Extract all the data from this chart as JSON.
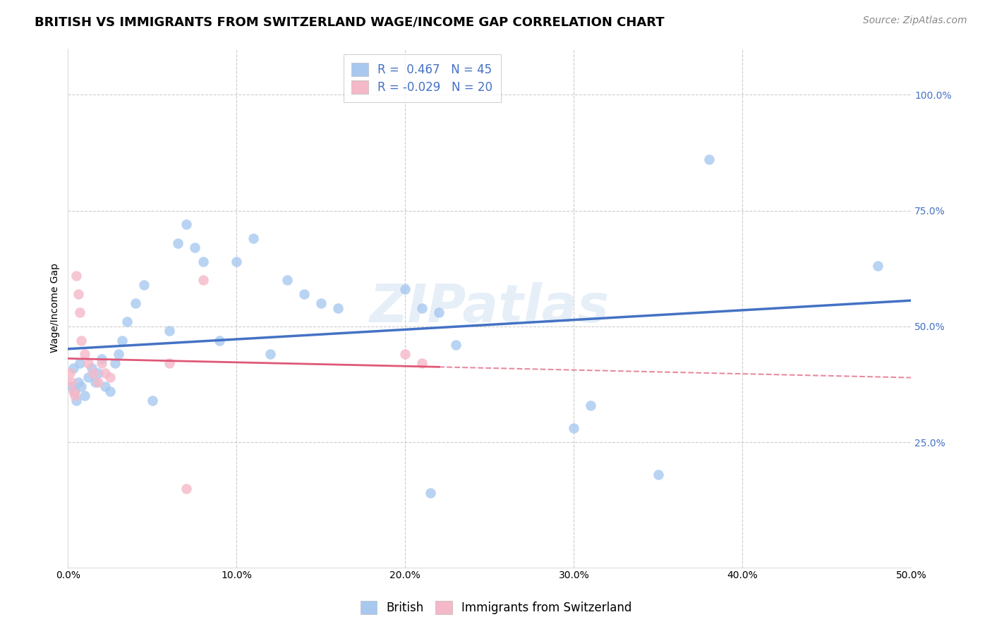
{
  "title": "BRITISH VS IMMIGRANTS FROM SWITZERLAND WAGE/INCOME GAP CORRELATION CHART",
  "source": "Source: ZipAtlas.com",
  "ylabel": "Wage/Income Gap",
  "watermark": "ZIPatlas",
  "xlim": [
    0.0,
    0.5
  ],
  "ylim": [
    -0.02,
    1.1
  ],
  "xtick_labels": [
    "0.0%",
    "10.0%",
    "20.0%",
    "30.0%",
    "40.0%",
    "50.0%"
  ],
  "xtick_vals": [
    0.0,
    0.1,
    0.2,
    0.3,
    0.4,
    0.5
  ],
  "ytick_labels": [
    "25.0%",
    "50.0%",
    "75.0%",
    "100.0%"
  ],
  "ytick_vals": [
    0.25,
    0.5,
    0.75,
    1.0
  ],
  "blue_R": 0.467,
  "blue_N": 45,
  "pink_R": -0.029,
  "pink_N": 20,
  "blue_color": "#a8c8f0",
  "pink_color": "#f5b8c8",
  "line_blue": "#4472c4",
  "line_pink": "#e05878",
  "british_x": [
    0.002,
    0.003,
    0.004,
    0.005,
    0.006,
    0.007,
    0.008,
    0.01,
    0.012,
    0.014,
    0.016,
    0.018,
    0.02,
    0.022,
    0.025,
    0.028,
    0.03,
    0.032,
    0.035,
    0.04,
    0.045,
    0.05,
    0.06,
    0.065,
    0.07,
    0.075,
    0.08,
    0.09,
    0.1,
    0.11,
    0.12,
    0.13,
    0.14,
    0.15,
    0.16,
    0.2,
    0.21,
    0.215,
    0.22,
    0.23,
    0.3,
    0.31,
    0.35,
    0.38,
    0.48
  ],
  "british_y": [
    0.37,
    0.41,
    0.36,
    0.34,
    0.38,
    0.42,
    0.37,
    0.35,
    0.39,
    0.41,
    0.38,
    0.4,
    0.43,
    0.37,
    0.36,
    0.42,
    0.44,
    0.47,
    0.51,
    0.55,
    0.59,
    0.34,
    0.49,
    0.68,
    0.72,
    0.67,
    0.64,
    0.47,
    0.64,
    0.69,
    0.44,
    0.6,
    0.57,
    0.55,
    0.54,
    0.58,
    0.54,
    0.14,
    0.53,
    0.46,
    0.28,
    0.33,
    0.18,
    0.86,
    0.63
  ],
  "swiss_x": [
    0.001,
    0.002,
    0.003,
    0.004,
    0.005,
    0.006,
    0.007,
    0.008,
    0.01,
    0.012,
    0.015,
    0.018,
    0.02,
    0.022,
    0.025,
    0.06,
    0.07,
    0.08,
    0.2,
    0.21
  ],
  "swiss_y": [
    0.4,
    0.38,
    0.36,
    0.35,
    0.61,
    0.57,
    0.53,
    0.47,
    0.44,
    0.42,
    0.4,
    0.38,
    0.42,
    0.4,
    0.39,
    0.42,
    0.15,
    0.6,
    0.44,
    0.42
  ],
  "blue_scatter_size": 110,
  "pink_scatter_size": 110,
  "background_color": "#ffffff",
  "grid_color": "#cccccc",
  "title_fontsize": 13,
  "label_fontsize": 10,
  "tick_fontsize": 10,
  "legend_fontsize": 12,
  "source_fontsize": 10,
  "right_ytick_color": "#4472c4",
  "left_spine_color": "#dddddd"
}
